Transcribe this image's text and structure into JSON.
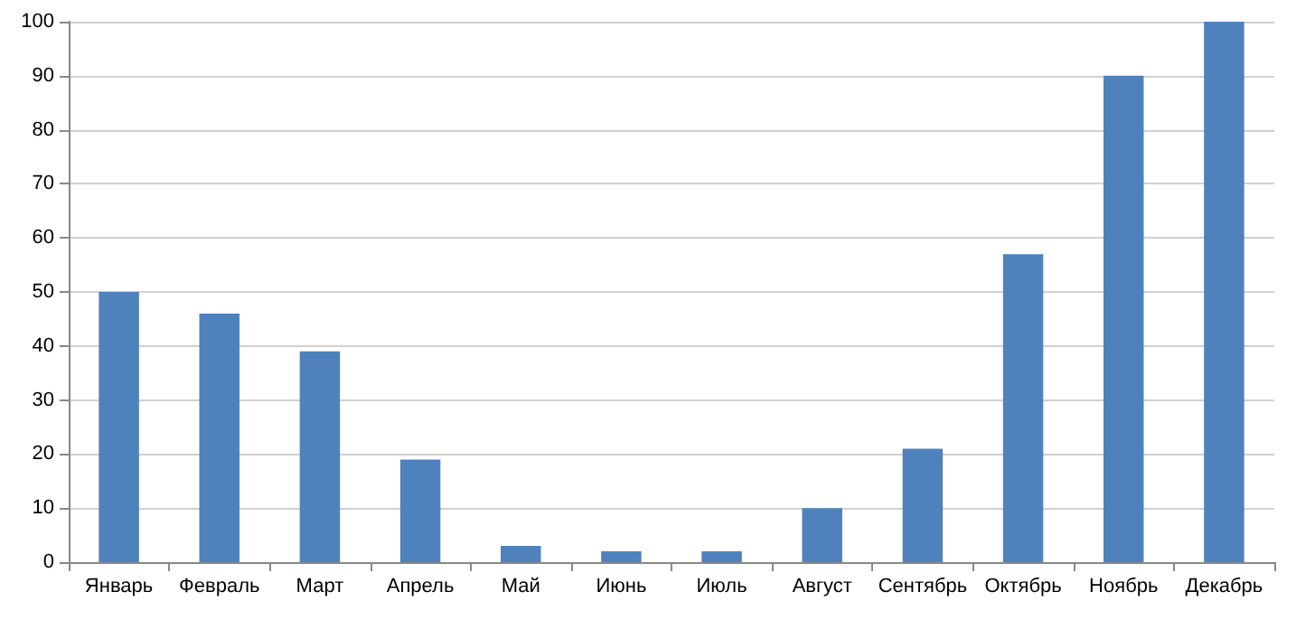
{
  "chart_data": {
    "type": "bar",
    "categories": [
      "Январь",
      "Февраль",
      "Март",
      "Апрель",
      "Май",
      "Июнь",
      "Июль",
      "Август",
      "Сентябрь",
      "Октябрь",
      "Ноябрь",
      "Декабрь"
    ],
    "values": [
      50,
      46,
      39,
      19,
      3,
      2,
      2,
      10,
      21,
      57,
      90,
      100
    ],
    "color": "#4f81bd",
    "ylim": [
      0,
      100
    ],
    "yticks": [
      0,
      10,
      20,
      30,
      40,
      50,
      60,
      70,
      80,
      90,
      100
    ],
    "grid": "y"
  }
}
